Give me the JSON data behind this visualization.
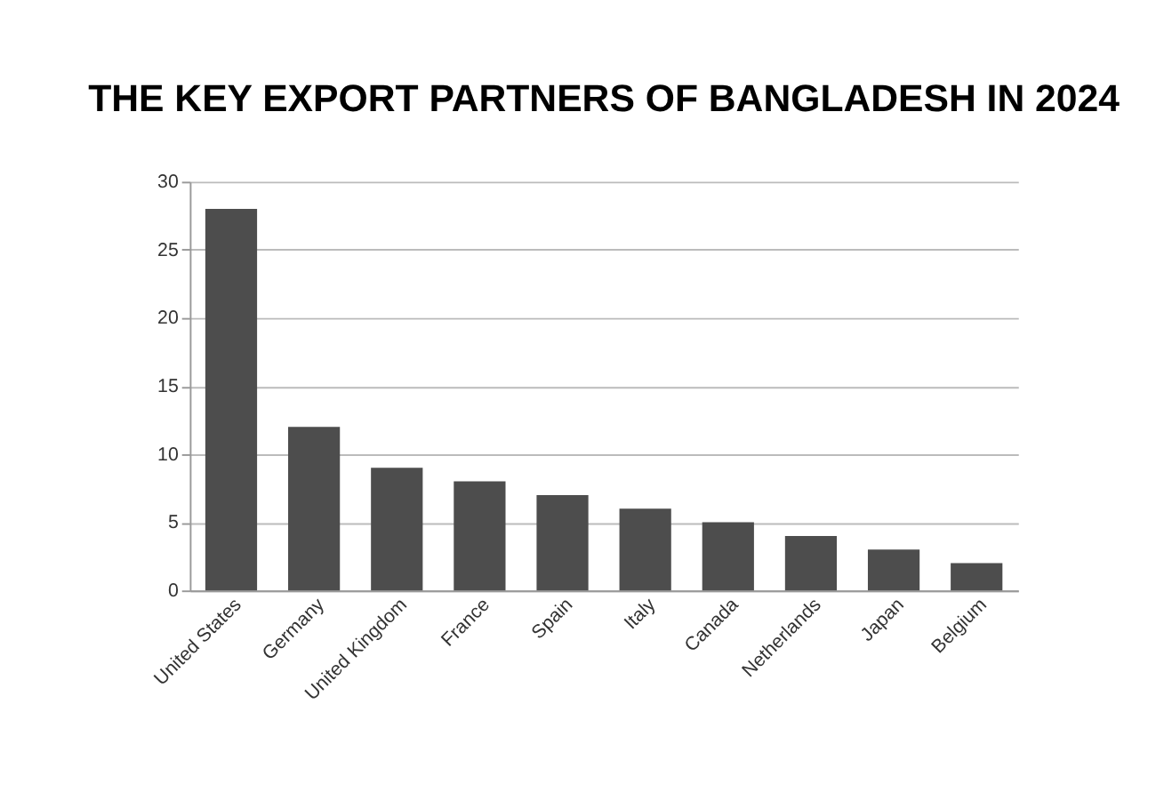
{
  "chart_data": {
    "type": "bar",
    "title": "THE KEY EXPORT PARTNERS OF BANGLADESH IN 2024",
    "categories": [
      "United States",
      "Germany",
      "United Kingdom",
      "France",
      "Spain",
      "Italy",
      "Canada",
      "Netherlands",
      "Japan",
      "Belgium"
    ],
    "values": [
      28,
      12,
      9,
      8,
      7,
      6,
      5,
      4,
      3,
      2
    ],
    "color": "#4d4d4d",
    "ylim": [
      0,
      30
    ],
    "yticks": [
      0,
      5,
      10,
      15,
      20,
      25,
      30
    ],
    "grid": "y"
  }
}
